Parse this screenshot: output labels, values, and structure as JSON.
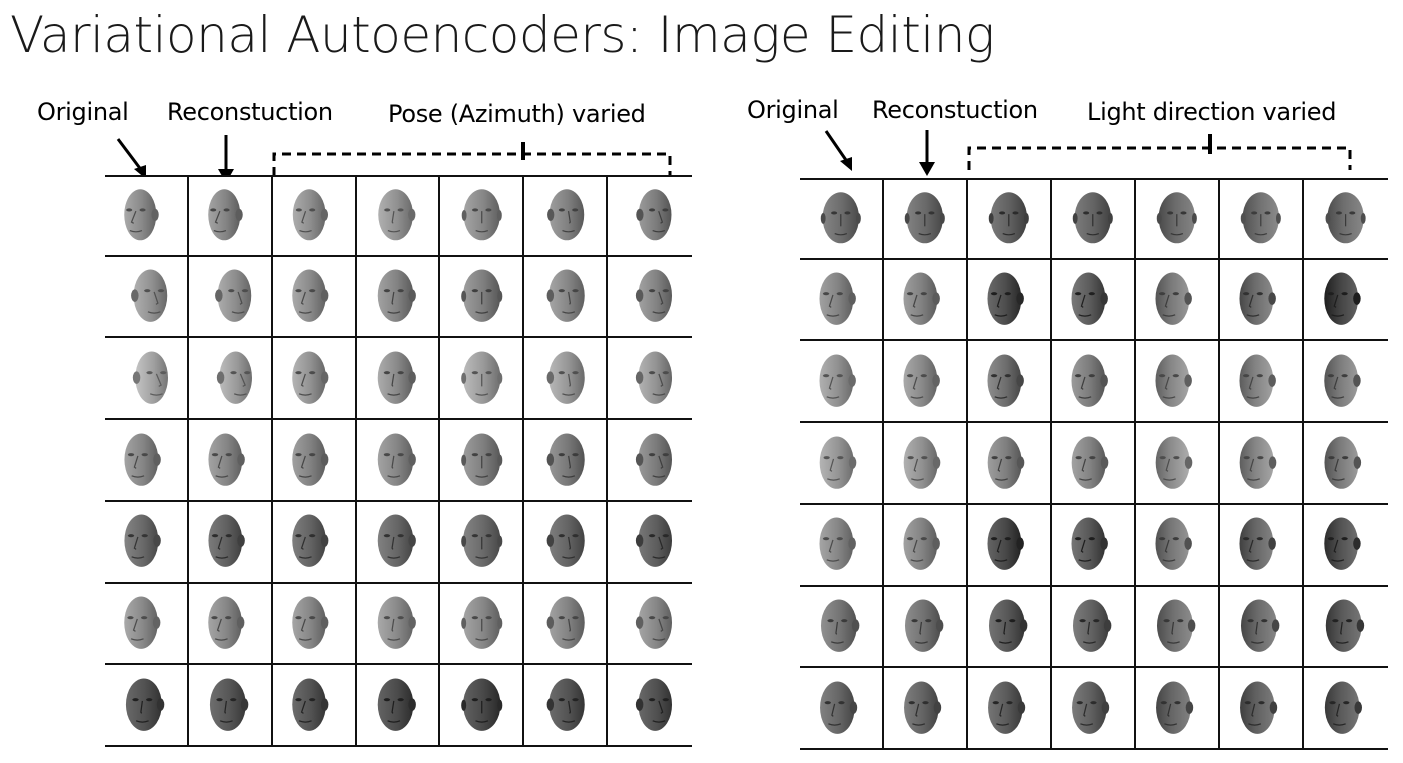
{
  "title": "Variational Autoencoders: Image Editing",
  "panels": [
    {
      "id": "pose",
      "labels": {
        "original": "Original",
        "reconstruction": "Reconstuction",
        "varied": "Pose (Azimuth) varied"
      },
      "rows": [
        {
          "yaw": -0.9,
          "tone": [
            176,
            0.22,
            0.25,
            0.2,
            0.18,
            0.24,
            0.28,
            0.3
          ]
        },
        {
          "yaw": 0.75,
          "tone": [
            180,
            0.2,
            0.22,
            0.24,
            0.28,
            0.3,
            0.26,
            0.28
          ]
        },
        {
          "yaw": 0.95,
          "tone": [
            196,
            0.18,
            0.22,
            0.26,
            0.3,
            0.22,
            0.24,
            0.26
          ]
        },
        {
          "yaw": -0.7,
          "tone": [
            170,
            0.22,
            0.22,
            0.24,
            0.22,
            0.26,
            0.3,
            0.28
          ]
        },
        {
          "yaw": -0.7,
          "tone": [
            150,
            0.3,
            0.36,
            0.34,
            0.32,
            0.3,
            0.34,
            0.38
          ]
        },
        {
          "yaw": -0.75,
          "tone": [
            176,
            0.22,
            0.24,
            0.24,
            0.22,
            0.24,
            0.26,
            0.24
          ]
        },
        {
          "yaw": -0.3,
          "tone": [
            138,
            0.42,
            0.38,
            0.4,
            0.46,
            0.48,
            0.4,
            0.42
          ]
        }
      ],
      "varied_yaw": [
        -0.75,
        -0.35,
        0.0,
        0.35,
        0.75
      ]
    },
    {
      "id": "light",
      "labels": {
        "original": "Original",
        "reconstruction": "Reconstuction",
        "varied": "Light direction varied"
      },
      "rows": [
        {
          "yaw": 0.0,
          "tone": [
            148,
            0.28,
            0.3,
            0.36,
            0.34,
            0.28,
            0.24,
            0.26
          ]
        },
        {
          "yaw": -0.7,
          "tone": [
            168,
            0.22,
            0.24,
            0.55,
            0.46,
            0.28,
            0.36,
            0.6
          ]
        },
        {
          "yaw": -0.7,
          "tone": [
            176,
            0.18,
            0.22,
            0.38,
            0.3,
            0.24,
            0.26,
            0.3
          ]
        },
        {
          "yaw": -0.65,
          "tone": [
            180,
            0.18,
            0.2,
            0.3,
            0.28,
            0.22,
            0.26,
            0.32
          ]
        },
        {
          "yaw": -0.7,
          "tone": [
            168,
            0.2,
            0.22,
            0.58,
            0.48,
            0.3,
            0.4,
            0.52
          ]
        },
        {
          "yaw": -0.3,
          "tone": [
            160,
            0.28,
            0.3,
            0.46,
            0.4,
            0.3,
            0.34,
            0.44
          ]
        },
        {
          "yaw": -0.55,
          "tone": [
            150,
            0.32,
            0.34,
            0.4,
            0.36,
            0.32,
            0.36,
            0.4
          ]
        }
      ],
      "varied_yaw": null
    }
  ]
}
